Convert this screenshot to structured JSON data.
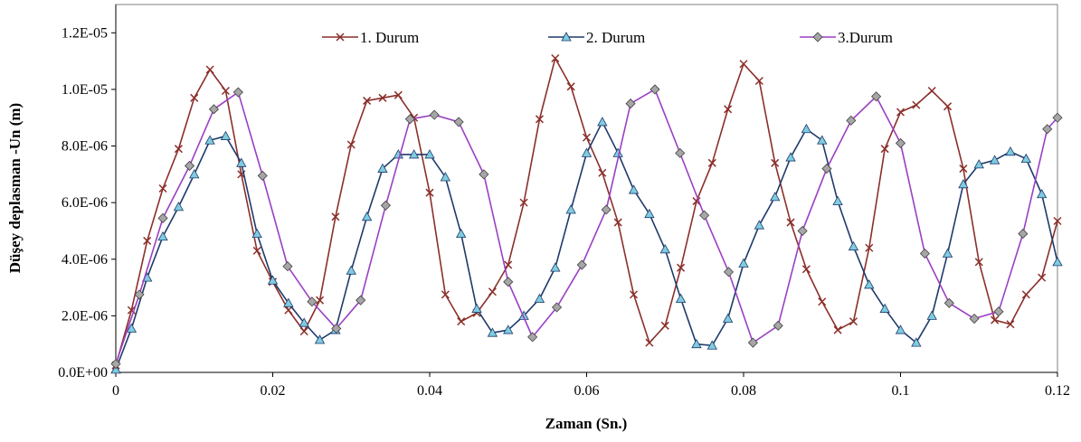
{
  "chart_data": {
    "type": "line",
    "xlabel": "Zaman  (Sn.)",
    "ylabel": "Düşey deplasman -Un  (m)",
    "xlim": [
      0,
      0.12
    ],
    "ylim": [
      0,
      1.3e-05
    ],
    "x_ticks": [
      0,
      0.02,
      0.04,
      0.06,
      0.08,
      0.1,
      0.12
    ],
    "x_tick_labels": [
      "0",
      "0.02",
      "0.04",
      "0.06",
      "0.08",
      "0.1",
      "0.12"
    ],
    "y_ticks": [
      0,
      2e-06,
      4e-06,
      6e-06,
      8e-06,
      1e-05,
      1.2e-05
    ],
    "y_tick_labels": [
      "0.0E+00",
      "2.0E-06",
      "4.0E-06",
      "6.0E-06",
      "8.0E-06",
      "1.0E-05",
      "1.2E-05"
    ],
    "grid": false,
    "legend_position": "top",
    "series": [
      {
        "name": "1. Durum",
        "color": "#8B2F2A",
        "marker": "x",
        "x": [
          0,
          0.002,
          0.004,
          0.006,
          0.008,
          0.01,
          0.012,
          0.014,
          0.016,
          0.018,
          0.02,
          0.022,
          0.024,
          0.026,
          0.028,
          0.03,
          0.032,
          0.034,
          0.036,
          0.038,
          0.04,
          0.042,
          0.044,
          0.046,
          0.048,
          0.05,
          0.052,
          0.054,
          0.056,
          0.058,
          0.06,
          0.062,
          0.064,
          0.066,
          0.068,
          0.07,
          0.072,
          0.074,
          0.076,
          0.078,
          0.08,
          0.082,
          0.084,
          0.086,
          0.088,
          0.09,
          0.092,
          0.094,
          0.096,
          0.098,
          0.1,
          0.102,
          0.104,
          0.106,
          0.108,
          0.11,
          0.112,
          0.114,
          0.116,
          0.118,
          0.12
        ],
        "values": [
          2.5e-07,
          2.2e-06,
          4.65e-06,
          6.5e-06,
          7.9e-06,
          9.7e-06,
          1.07e-05,
          9.95e-06,
          7e-06,
          4.3e-06,
          3.2e-06,
          2.2e-06,
          1.45e-06,
          2.55e-06,
          5.5e-06,
          8.05e-06,
          9.6e-06,
          9.7e-06,
          9.8e-06,
          9e-06,
          6.35e-06,
          2.75e-06,
          1.8e-06,
          2.1e-06,
          2.85e-06,
          3.8e-06,
          6e-06,
          8.95e-06,
          1.11e-05,
          1.01e-05,
          8.3e-06,
          7.05e-06,
          5.3e-06,
          2.75e-06,
          1.05e-06,
          1.65e-06,
          3.7e-06,
          6.05e-06,
          7.4e-06,
          9.3e-06,
          1.09e-05,
          1.03e-05,
          7.4e-06,
          5.3e-06,
          3.65e-06,
          2.5e-06,
          1.5e-06,
          1.8e-06,
          4.4e-06,
          7.9e-06,
          9.2e-06,
          9.45e-06,
          9.95e-06,
          9.4e-06,
          7.2e-06,
          3.9e-06,
          1.85e-06,
          1.7e-06,
          2.75e-06,
          3.35e-06,
          5.35e-06
        ]
      },
      {
        "name": "2. Durum",
        "color": "#1F3A6B",
        "marker": "triangle",
        "marker_color": "#7FCCE0",
        "x": [
          0,
          0.002,
          0.004,
          0.006,
          0.008,
          0.01,
          0.012,
          0.014,
          0.016,
          0.018,
          0.02,
          0.022,
          0.024,
          0.026,
          0.028,
          0.03,
          0.032,
          0.034,
          0.036,
          0.038,
          0.04,
          0.042,
          0.044,
          0.046,
          0.048,
          0.05,
          0.052,
          0.054,
          0.056,
          0.058,
          0.06,
          0.062,
          0.064,
          0.066,
          0.068,
          0.07,
          0.072,
          0.074,
          0.076,
          0.078,
          0.08,
          0.082,
          0.084,
          0.086,
          0.088,
          0.09,
          0.092,
          0.094,
          0.096,
          0.098,
          0.1,
          0.102,
          0.104,
          0.106,
          0.108,
          0.11,
          0.112,
          0.114,
          0.116,
          0.118,
          0.12
        ],
        "values": [
          1e-07,
          1.55e-06,
          3.35e-06,
          4.8e-06,
          5.85e-06,
          7e-06,
          8.2e-06,
          8.35e-06,
          7.4e-06,
          4.9e-06,
          3.25e-06,
          2.45e-06,
          1.75e-06,
          1.15e-06,
          1.5e-06,
          3.6e-06,
          5.5e-06,
          7.2e-06,
          7.7e-06,
          7.7e-06,
          7.7e-06,
          6.9e-06,
          4.9e-06,
          2.25e-06,
          1.4e-06,
          1.5e-06,
          2e-06,
          2.6e-06,
          3.7e-06,
          5.75e-06,
          7.75e-06,
          8.85e-06,
          7.75e-06,
          6.45e-06,
          5.6e-06,
          4.35e-06,
          2.6e-06,
          1e-06,
          9.5e-07,
          1.9e-06,
          3.85e-06,
          5.2e-06,
          6.2e-06,
          7.6e-06,
          8.6e-06,
          8.2e-06,
          6.05e-06,
          4.45e-06,
          3.1e-06,
          2.25e-06,
          1.5e-06,
          1.05e-06,
          2e-06,
          4.2e-06,
          6.65e-06,
          7.35e-06,
          7.5e-06,
          7.8e-06,
          7.55e-06,
          6.3e-06,
          3.9e-06
        ]
      },
      {
        "name": "3.Durum",
        "color": "#9B3FC4",
        "marker": "diamond",
        "marker_color": "#A6A6A6",
        "x": [
          0,
          0.003,
          0.006,
          0.0094,
          0.0125,
          0.0156,
          0.0187,
          0.0219,
          0.025,
          0.0281,
          0.0312,
          0.0344,
          0.0375,
          0.0406,
          0.0437,
          0.0469,
          0.05,
          0.0531,
          0.0562,
          0.0594,
          0.0625,
          0.0656,
          0.0687,
          0.0719,
          0.075,
          0.0781,
          0.0812,
          0.0844,
          0.0875,
          0.0906,
          0.0937,
          0.0969,
          0.1,
          0.1031,
          0.1062,
          0.1094,
          0.1125,
          0.1156,
          0.1187,
          0.12
        ],
        "values": [
          3e-07,
          2.75e-06,
          5.45e-06,
          7.3e-06,
          9.3e-06,
          9.9e-06,
          6.95e-06,
          3.75e-06,
          2.5e-06,
          1.55e-06,
          2.55e-06,
          5.9e-06,
          8.95e-06,
          9.1e-06,
          8.85e-06,
          7e-06,
          3.2e-06,
          1.25e-06,
          2.3e-06,
          3.8e-06,
          5.75e-06,
          9.5e-06,
          1e-05,
          7.75e-06,
          5.55e-06,
          3.55e-06,
          1.05e-06,
          1.65e-06,
          5e-06,
          7.2e-06,
          8.9e-06,
          9.75e-06,
          8.1e-06,
          4.2e-06,
          2.45e-06,
          1.9e-06,
          2.15e-06,
          4.9e-06,
          8.6e-06,
          9e-06
        ]
      }
    ]
  }
}
